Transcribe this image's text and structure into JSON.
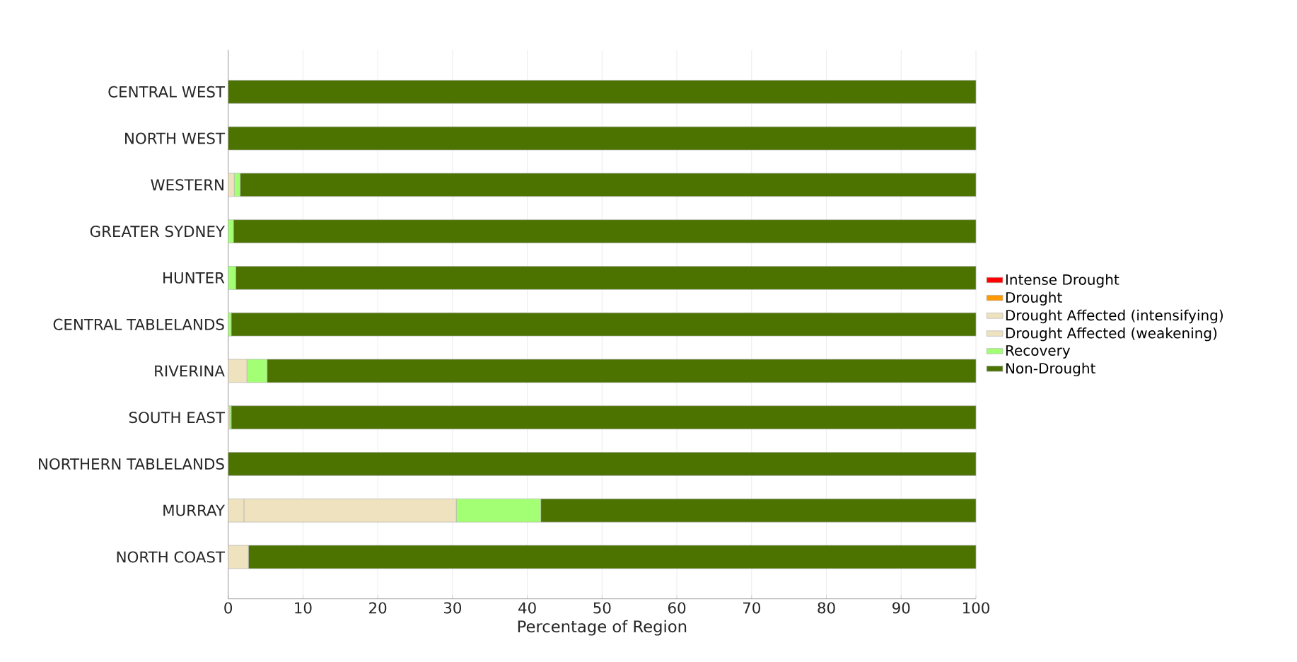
{
  "chart_data": {
    "type": "bar",
    "orientation": "horizontal",
    "stacked": true,
    "categories": [
      "CENTRAL WEST",
      "NORTH WEST",
      "WESTERN",
      "GREATER SYDNEY",
      "HUNTER",
      "CENTRAL TABLELANDS",
      "RIVERINA",
      "SOUTH EAST",
      "NORTHERN TABLELANDS",
      "MURRAY",
      "NORTH COAST"
    ],
    "series": [
      {
        "name": "Intense Drought",
        "color": "#ff0000",
        "values": [
          0,
          0,
          0,
          0,
          0,
          0,
          0,
          0,
          0,
          0,
          0
        ]
      },
      {
        "name": "Drought",
        "color": "#ff9900",
        "values": [
          0,
          0,
          0,
          0,
          0,
          0,
          0,
          0,
          0,
          0,
          0
        ]
      },
      {
        "name": "Drought Affected (intensifying)",
        "color": "#eee2bf",
        "values": [
          0,
          0,
          0,
          0,
          0,
          0,
          0,
          0,
          0,
          2.1,
          2.7
        ]
      },
      {
        "name": "Drought Affected (weakening)",
        "color": "#eee2bf",
        "values": [
          0,
          0,
          0.8,
          0,
          0,
          0,
          2.5,
          0.2,
          0,
          28.4,
          0
        ]
      },
      {
        "name": "Recovery",
        "color": "#a3ff73",
        "values": [
          0,
          0,
          0.8,
          0.7,
          1.0,
          0.4,
          2.7,
          0.2,
          0,
          11.3,
          0
        ]
      },
      {
        "name": "Non-Drought",
        "color": "#4c7300",
        "values": [
          100,
          100,
          98.4,
          99.3,
          99.0,
          99.6,
          94.8,
          99.6,
          100,
          58.2,
          97.3
        ]
      }
    ],
    "xlabel": "Percentage of Region",
    "xlim": [
      0,
      100
    ],
    "xticks": [
      0,
      10,
      20,
      30,
      40,
      50,
      60,
      70,
      80,
      90,
      100
    ],
    "grid": "x",
    "legend": "right"
  }
}
